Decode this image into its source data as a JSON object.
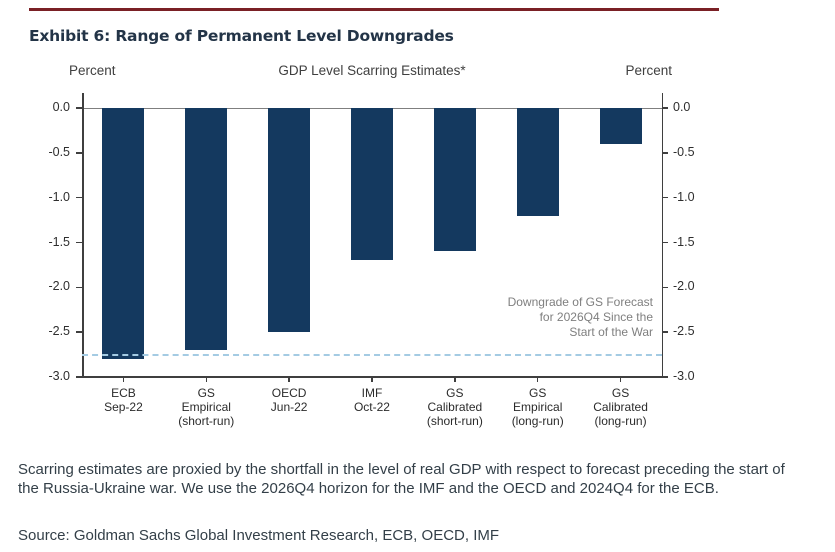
{
  "exhibit": {
    "title": "Exhibit 6: Range of Permanent Level Downgrades",
    "rule_color": "#7a2025"
  },
  "chart_data": {
    "type": "bar",
    "title": "GDP Level Scarring Estimates*",
    "left_axis_label": "Percent",
    "right_axis_label": "Percent",
    "ylim": [
      -3.0,
      0.0
    ],
    "ytick_interval": 0.5,
    "ytick_labels": [
      "0.0",
      "-0.5",
      "-1.0",
      "-1.5",
      "-2.0",
      "-2.5",
      "-3.0"
    ],
    "categories": [
      [
        "ECB",
        "Sep-22"
      ],
      [
        "GS",
        "Empirical",
        "(short-run)"
      ],
      [
        "OECD",
        "Jun-22"
      ],
      [
        "IMF",
        "Oct-22"
      ],
      [
        "GS",
        "Calibrated",
        "(short-run)"
      ],
      [
        "GS",
        "Empirical",
        "(long-run)"
      ],
      [
        "GS",
        "Calibrated",
        "(long-run)"
      ]
    ],
    "values": [
      -2.8,
      -2.7,
      -2.5,
      -1.7,
      -1.6,
      -1.2,
      -0.4
    ],
    "bar_color": "#14395f",
    "grid": false,
    "legend": false,
    "reference_line": {
      "value": -2.75,
      "style": "dashed",
      "color": "#a4cbe3",
      "label": "Downgrade of GS Forecast\nfor 2026Q4 Since the\nStart of the War",
      "label_color": "#7f7f7f"
    }
  },
  "notes": {
    "footnote": "Scarring estimates are proxied by the shortfall in the level of real GDP with respect to forecast preceding the start of the Russia-Ukraine war. We use the 2026Q4 horizon for the IMF and the OECD and 2024Q4 for the ECB.",
    "source": "Source: Goldman Sachs Global Investment Research, ECB, OECD, IMF"
  }
}
